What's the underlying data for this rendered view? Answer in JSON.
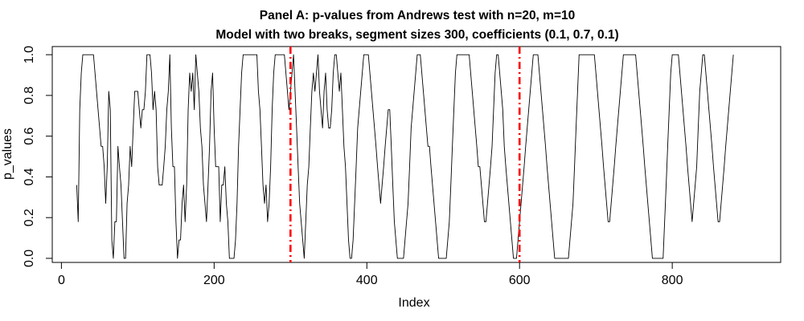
{
  "chart_data": {
    "type": "line",
    "title": "Panel A: p-values from Andrews test with n=20, m=10",
    "subtitle": "Model with two breaks, segment sizes 300, coefficients (0.1, 0.7, 0.1)",
    "xlabel": "Index",
    "ylabel": "p_values",
    "xlim": [
      -12,
      942
    ],
    "ylim": [
      -0.02,
      1.04
    ],
    "x_ticks": [
      0,
      200,
      400,
      600,
      800
    ],
    "y_ticks": [
      0.0,
      0.2,
      0.4,
      0.6,
      0.8,
      1.0
    ],
    "x_tick_labels": [
      "0",
      "200",
      "400",
      "600",
      "800"
    ],
    "y_tick_labels": [
      "0.0",
      "0.2",
      "0.4",
      "0.6",
      "0.8",
      "1.0"
    ],
    "grid": false,
    "legend": "none",
    "series": [
      {
        "x_start": 20,
        "x_step": 2,
        "color": "#000000",
        "values": [
          0.36,
          0.18,
          0.73,
          0.91,
          1.0,
          1.0,
          1.0,
          1.0,
          1.0,
          1.0,
          1.0,
          1.0,
          0.91,
          0.82,
          0.73,
          0.64,
          0.55,
          0.55,
          0.45,
          0.27,
          0.45,
          0.82,
          0.73,
          0.09,
          0.0,
          0.18,
          0.18,
          0.55,
          0.45,
          0.36,
          0.18,
          0.0,
          0.0,
          0.27,
          0.36,
          0.55,
          0.45,
          0.64,
          0.82,
          0.82,
          0.82,
          0.73,
          0.64,
          0.73,
          0.73,
          0.82,
          1.0,
          1.0,
          1.0,
          0.91,
          0.73,
          0.82,
          0.73,
          0.45,
          0.36,
          0.36,
          0.36,
          0.45,
          0.55,
          0.73,
          0.82,
          1.0,
          0.64,
          0.45,
          0.45,
          0.18,
          0.0,
          0.09,
          0.09,
          0.27,
          0.36,
          0.18,
          0.36,
          0.73,
          0.91,
          0.82,
          0.91,
          0.73,
          1.0,
          0.91,
          0.82,
          0.64,
          0.55,
          0.36,
          0.27,
          0.18,
          0.36,
          0.55,
          0.82,
          0.91,
          0.64,
          0.45,
          0.45,
          0.45,
          0.18,
          0.36,
          0.36,
          0.45,
          0.27,
          0.18,
          0.0,
          0.0,
          0.0,
          0.0,
          0.09,
          0.27,
          0.55,
          0.73,
          0.91,
          1.0,
          1.0,
          1.0,
          1.0,
          1.0,
          1.0,
          1.0,
          1.0,
          1.0,
          1.0,
          0.82,
          0.73,
          0.55,
          0.36,
          0.27,
          0.36,
          0.18,
          0.27,
          0.45,
          0.73,
          0.91,
          1.0,
          1.0,
          1.0,
          1.0,
          1.0,
          1.0,
          1.0,
          0.91,
          0.82,
          0.73,
          0.82,
          0.91,
          1.0,
          0.82,
          0.64,
          0.45,
          0.27,
          0.18,
          0.09,
          0.0,
          0.18,
          0.36,
          0.45,
          0.64,
          0.82,
          0.91,
          0.82,
          0.91,
          1.0,
          0.82,
          0.73,
          0.64,
          0.82,
          0.91,
          0.73,
          0.64,
          0.64,
          0.73,
          0.91,
          1.0,
          1.0,
          0.91,
          0.82,
          0.91,
          0.73,
          0.55,
          0.45,
          0.27,
          0.09,
          0.0,
          0.0,
          0.09,
          0.27,
          0.45,
          0.64,
          0.73,
          0.82,
          0.91,
          1.0,
          1.0,
          1.0,
          1.0,
          0.91,
          0.82,
          0.73,
          0.64,
          0.55,
          0.45,
          0.36,
          0.27,
          0.36,
          0.45,
          0.55,
          0.64,
          0.73,
          0.73,
          0.55,
          0.36,
          0.18,
          0.09,
          0.0,
          0.0,
          0.0,
          0.0,
          0.0,
          0.09,
          0.18,
          0.27,
          0.45,
          0.64,
          0.73,
          0.82,
          0.91,
          1.0,
          1.0,
          1.0,
          0.91,
          0.82,
          0.73,
          0.64,
          0.55,
          0.55,
          0.45,
          0.36,
          0.27,
          0.18,
          0.09,
          0.0,
          0.0,
          0.0,
          0.0,
          0.0,
          0.0,
          0.09,
          0.18,
          0.36,
          0.55,
          0.73,
          0.91,
          1.0,
          1.0,
          1.0,
          1.0,
          1.0,
          1.0,
          1.0,
          1.0,
          1.0,
          0.91,
          0.82,
          0.73,
          0.64,
          0.55,
          0.45,
          0.45,
          0.36,
          0.27,
          0.18,
          0.18,
          0.27,
          0.36,
          0.45,
          0.55,
          0.73,
          0.91,
          1.0,
          1.0,
          0.91,
          0.82,
          0.73,
          0.55,
          0.45,
          0.36,
          0.27,
          0.18,
          0.09,
          0.0,
          0.0,
          0.0,
          0.09,
          0.18,
          0.27,
          0.36,
          0.45,
          0.55,
          0.64,
          0.73,
          0.82,
          0.91,
          1.0,
          1.0,
          1.0,
          1.0,
          0.91,
          0.82,
          0.73,
          0.64,
          0.55,
          0.45,
          0.36,
          0.27,
          0.18,
          0.09,
          0.0,
          0.0,
          0.0,
          0.0,
          0.0,
          0.0,
          0.0,
          0.0,
          0.0,
          0.0,
          0.09,
          0.18,
          0.27,
          0.45,
          0.64,
          0.82,
          1.0,
          1.0,
          1.0,
          1.0,
          1.0,
          1.0,
          1.0,
          1.0,
          1.0,
          1.0,
          1.0,
          0.91,
          0.82,
          0.73,
          0.64,
          0.55,
          0.45,
          0.36,
          0.27,
          0.18,
          0.18,
          0.27,
          0.36,
          0.45,
          0.55,
          0.64,
          0.73,
          0.82,
          0.91,
          1.0,
          1.0,
          1.0,
          1.0,
          1.0,
          1.0,
          1.0,
          1.0,
          1.0,
          0.91,
          0.82,
          0.73,
          0.64,
          0.55,
          0.45,
          0.36,
          0.27,
          0.18,
          0.09,
          0.0,
          0.0,
          0.0,
          0.0,
          0.0,
          0.0,
          0.0,
          0.0,
          0.18,
          0.36,
          0.55,
          0.73,
          0.91,
          1.0,
          1.0,
          1.0,
          1.0,
          1.0,
          0.91,
          0.82,
          0.73,
          0.64,
          0.55,
          0.45,
          0.36,
          0.27,
          0.18,
          0.27,
          0.36,
          0.45,
          0.64,
          0.82,
          0.91,
          1.0,
          1.0,
          0.91,
          0.82,
          0.73,
          0.64,
          0.55,
          0.45,
          0.36,
          0.27,
          0.18,
          0.18,
          0.27,
          0.36,
          0.45,
          0.55,
          0.64,
          0.73,
          0.82,
          0.91,
          1.0
        ]
      }
    ],
    "annotations": [
      {
        "type": "vline",
        "x": 300,
        "color": "#ff0000",
        "style": "dash-dot"
      },
      {
        "type": "vline",
        "x": 600,
        "color": "#ff0000",
        "style": "dash-dot"
      }
    ]
  }
}
